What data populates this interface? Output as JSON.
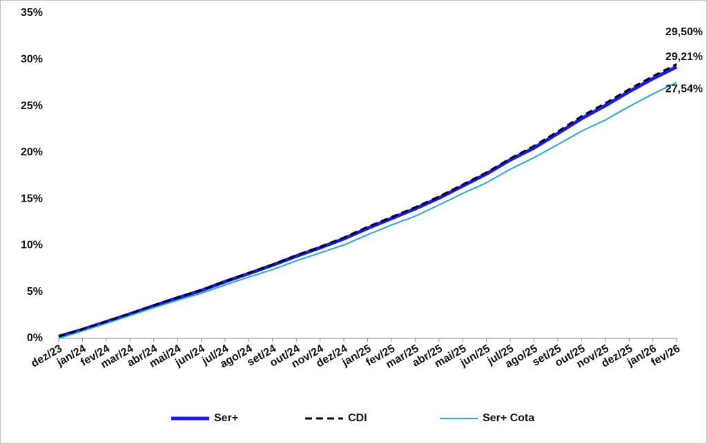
{
  "chart_data": {
    "type": "line",
    "categories": [
      "dez/23",
      "jan/24",
      "fev/24",
      "mar/24",
      "abr/24",
      "mai/24",
      "jun/24",
      "jul/24",
      "ago/24",
      "set/24",
      "out/24",
      "nov/24",
      "dez/24",
      "jan/25",
      "fev/25",
      "mar/25",
      "abr/25",
      "mai/25",
      "jun/25",
      "jul/25",
      "ago/25",
      "set/25",
      "out/25",
      "nov/25",
      "dez/25",
      "jan/26",
      "fev/26"
    ],
    "series": [
      {
        "name": "Ser+",
        "color": "#1a1aee",
        "line_style": "thick",
        "values": [
          0.2,
          0.95,
          1.78,
          2.62,
          3.5,
          4.35,
          5.15,
          6.1,
          6.98,
          7.88,
          8.85,
          9.75,
          10.72,
          11.85,
          12.9,
          13.95,
          15.1,
          16.4,
          17.7,
          19.2,
          20.5,
          22.05,
          23.65,
          25.05,
          26.55,
          27.95,
          29.21
        ],
        "value_labels": [
          null,
          null,
          null,
          null,
          null,
          null,
          null,
          null,
          null,
          null,
          null,
          null,
          null,
          null,
          null,
          null,
          null,
          null,
          null,
          null,
          null,
          null,
          null,
          null,
          null,
          null,
          "29,21%"
        ]
      },
      {
        "name": "CDI",
        "color": "#000000",
        "line_style": "dashed",
        "values": [
          0.2,
          0.97,
          1.8,
          2.65,
          3.55,
          4.4,
          5.2,
          6.15,
          7.05,
          7.95,
          8.95,
          9.85,
          10.85,
          12.0,
          13.05,
          14.1,
          15.25,
          16.55,
          17.85,
          19.35,
          20.7,
          22.25,
          23.9,
          25.3,
          26.8,
          28.2,
          29.5
        ],
        "value_labels": [
          null,
          null,
          null,
          null,
          null,
          null,
          null,
          null,
          null,
          null,
          null,
          null,
          null,
          null,
          null,
          null,
          null,
          null,
          null,
          null,
          null,
          null,
          null,
          null,
          null,
          null,
          "29,50%"
        ]
      },
      {
        "name": "Ser+ Cota",
        "color": "#21a9e1",
        "line_style": "solid",
        "values": [
          0.0,
          0.8,
          1.6,
          2.45,
          3.3,
          4.1,
          4.85,
          5.75,
          6.6,
          7.4,
          8.35,
          9.2,
          10.05,
          11.15,
          12.2,
          13.15,
          14.35,
          15.6,
          16.75,
          18.2,
          19.45,
          20.85,
          22.3,
          23.5,
          24.95,
          26.3,
          27.54
        ],
        "value_labels": [
          null,
          null,
          null,
          null,
          null,
          null,
          null,
          null,
          null,
          null,
          null,
          null,
          null,
          null,
          null,
          null,
          null,
          null,
          null,
          null,
          null,
          null,
          null,
          null,
          null,
          null,
          "27,54%"
        ]
      }
    ],
    "ylim": [
      0,
      35
    ],
    "yticks": [
      {
        "value": 0,
        "label": "0%"
      },
      {
        "value": 5,
        "label": "5%"
      },
      {
        "value": 10,
        "label": "10%"
      },
      {
        "value": 15,
        "label": "15%"
      },
      {
        "value": 20,
        "label": "20%"
      },
      {
        "value": 25,
        "label": "25%"
      },
      {
        "value": 30,
        "label": "30%"
      },
      {
        "value": 35,
        "label": "35%"
      }
    ],
    "legend": "bottom",
    "grid": false
  }
}
